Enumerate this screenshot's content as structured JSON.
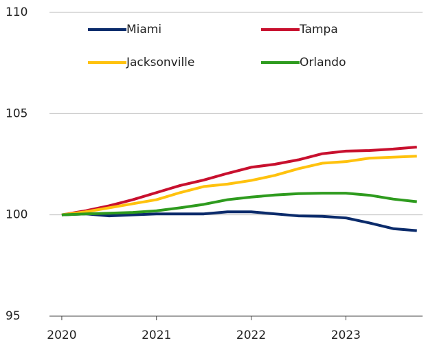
{
  "chart_data": {
    "type": "line",
    "x": [
      2020,
      2020.25,
      2020.5,
      2020.75,
      2021,
      2021.25,
      2021.5,
      2021.75,
      2022,
      2022.25,
      2022.5,
      2022.75,
      2023,
      2023.25,
      2023.5,
      2023.75
    ],
    "series": [
      {
        "name": "Miami",
        "color": "#0b2b6b",
        "values": [
          100,
          100.05,
          99.95,
          100.0,
          100.05,
          100.05,
          100.05,
          100.15,
          100.15,
          100.05,
          99.95,
          99.93,
          99.85,
          99.6,
          99.32,
          99.22
        ]
      },
      {
        "name": "Tampa",
        "color": "#c8102e",
        "values": [
          100,
          100.2,
          100.45,
          100.75,
          101.1,
          101.45,
          101.72,
          102.05,
          102.35,
          102.5,
          102.72,
          103.02,
          103.15,
          103.18,
          103.25,
          103.35
        ]
      },
      {
        "name": "Jacksonville",
        "color": "#ffc20e",
        "values": [
          100,
          100.15,
          100.35,
          100.55,
          100.75,
          101.1,
          101.4,
          101.52,
          101.7,
          101.95,
          102.28,
          102.55,
          102.63,
          102.8,
          102.85,
          102.9
        ]
      },
      {
        "name": "Orlando",
        "color": "#2e9b1e",
        "values": [
          100,
          100.05,
          100.08,
          100.12,
          100.2,
          100.35,
          100.52,
          100.75,
          100.88,
          100.98,
          101.05,
          101.07,
          101.07,
          100.97,
          100.78,
          100.65
        ]
      }
    ],
    "xlim": [
      2019.87,
      2023.81
    ],
    "xticks": [
      2020,
      2021,
      2022,
      2023
    ],
    "ylim": [
      95,
      110
    ],
    "yticks": [
      95,
      100,
      105,
      110
    ],
    "grid": true
  }
}
